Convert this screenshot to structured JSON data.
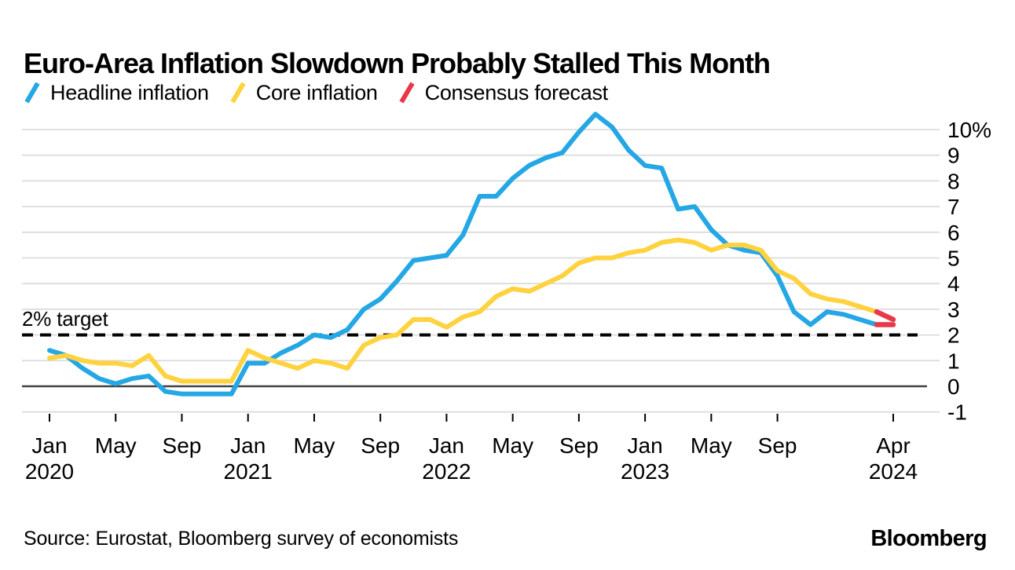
{
  "chart_data": {
    "type": "line",
    "title": "Euro-Area Inflation Slowdown Probably Stalled This Month",
    "unit": "percent, year-over-year",
    "x_start": "2020-01",
    "x_end": "2024-04",
    "months_span": 51,
    "y_axis": {
      "min": -1,
      "max": 10,
      "step": 1,
      "tick_labels": [
        "10%",
        "9",
        "8",
        "7",
        "6",
        "5",
        "4",
        "3",
        "2",
        "1",
        "0",
        "-1"
      ]
    },
    "x_ticks": [
      {
        "month_index": 0,
        "month": "Jan",
        "year": "2020"
      },
      {
        "month_index": 4,
        "month": "May"
      },
      {
        "month_index": 8,
        "month": "Sep"
      },
      {
        "month_index": 12,
        "month": "Jan",
        "year": "2021"
      },
      {
        "month_index": 16,
        "month": "May"
      },
      {
        "month_index": 20,
        "month": "Sep"
      },
      {
        "month_index": 24,
        "month": "Jan",
        "year": "2022"
      },
      {
        "month_index": 28,
        "month": "May"
      },
      {
        "month_index": 32,
        "month": "Sep"
      },
      {
        "month_index": 36,
        "month": "Jan",
        "year": "2023"
      },
      {
        "month_index": 40,
        "month": "May"
      },
      {
        "month_index": 44,
        "month": "Sep"
      },
      {
        "month_index": 51,
        "month": "Apr",
        "year": "2024"
      }
    ],
    "target": {
      "label": "2% target",
      "value": 2
    },
    "series": [
      {
        "name": "Headline inflation",
        "color": "#24a7e4",
        "first_month": "2020-01",
        "values": [
          1.4,
          1.2,
          0.7,
          0.3,
          0.1,
          0.3,
          0.4,
          -0.2,
          -0.3,
          -0.3,
          -0.3,
          -0.3,
          0.9,
          0.9,
          1.3,
          1.6,
          2.0,
          1.9,
          2.2,
          3.0,
          3.4,
          4.1,
          4.9,
          5.0,
          5.1,
          5.9,
          7.4,
          7.4,
          8.1,
          8.6,
          8.9,
          9.1,
          9.9,
          10.6,
          10.1,
          9.2,
          8.6,
          8.5,
          6.9,
          7.0,
          6.1,
          5.5,
          5.3,
          5.2,
          4.3,
          2.9,
          2.4,
          2.9,
          2.8,
          2.6,
          2.4
        ]
      },
      {
        "name": "Core inflation",
        "color": "#ffd23e",
        "first_month": "2020-01",
        "values": [
          1.1,
          1.2,
          1.0,
          0.9,
          0.9,
          0.8,
          1.2,
          0.4,
          0.2,
          0.2,
          0.2,
          0.2,
          1.4,
          1.1,
          0.9,
          0.7,
          1.0,
          0.9,
          0.7,
          1.6,
          1.9,
          2.0,
          2.6,
          2.6,
          2.3,
          2.7,
          2.9,
          3.5,
          3.8,
          3.7,
          4.0,
          4.3,
          4.8,
          5.0,
          5.0,
          5.2,
          5.3,
          5.6,
          5.7,
          5.6,
          5.3,
          5.5,
          5.5,
          5.3,
          4.5,
          4.2,
          3.6,
          3.4,
          3.3,
          3.1,
          2.9
        ]
      }
    ],
    "forecast": {
      "name": "Consensus forecast",
      "color": "#e8394a",
      "month": "2024-04",
      "headline": 2.4,
      "core": 2.6
    },
    "grid": {
      "color": "#dcdcdc",
      "zero_line_color": "#404040",
      "target_line_color": "#000000"
    },
    "legend_position": "top-left"
  },
  "footer": {
    "source": "Source: Eurostat, Bloomberg survey of economists",
    "logo": "Bloomberg"
  }
}
